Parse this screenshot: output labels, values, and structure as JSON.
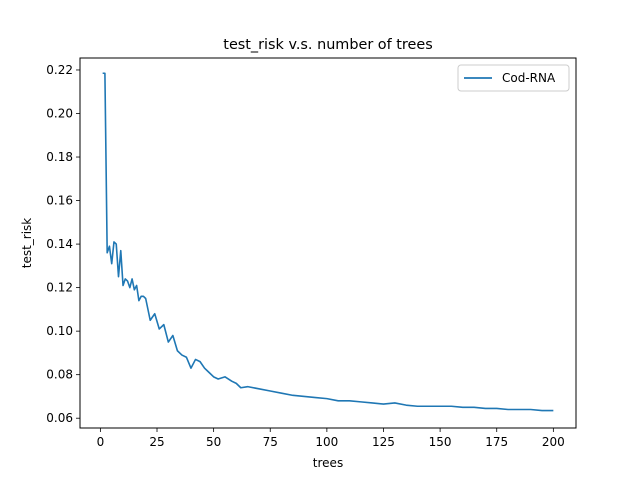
{
  "chart_data": {
    "type": "line",
    "title": "test_risk v.s. number of trees",
    "xlabel": "trees",
    "ylabel": "test_risk",
    "xlim": [
      -9,
      210
    ],
    "ylim": [
      0.0555,
      0.2255
    ],
    "xticks": [
      0,
      25,
      50,
      75,
      100,
      125,
      150,
      175,
      200
    ],
    "xtick_labels": [
      "0",
      "25",
      "50",
      "75",
      "100",
      "125",
      "150",
      "175",
      "200"
    ],
    "yticks": [
      0.06,
      0.08,
      0.1,
      0.12,
      0.14,
      0.16,
      0.18,
      0.2,
      0.22
    ],
    "ytick_labels": [
      "0.06",
      "0.08",
      "0.10",
      "0.12",
      "0.14",
      "0.16",
      "0.18",
      "0.20",
      "0.22"
    ],
    "grid": false,
    "legend_position": "top-right",
    "series": [
      {
        "name": "Cod-RNA",
        "color": "#1f77b4",
        "x": [
          1,
          2,
          3,
          4,
          5,
          6,
          7,
          8,
          9,
          10,
          11,
          12,
          13,
          14,
          15,
          16,
          17,
          18,
          19,
          20,
          22,
          24,
          26,
          28,
          30,
          32,
          34,
          36,
          38,
          40,
          42,
          44,
          46,
          48,
          50,
          52,
          55,
          58,
          60,
          62,
          65,
          70,
          75,
          80,
          85,
          90,
          95,
          100,
          105,
          110,
          115,
          120,
          125,
          130,
          135,
          140,
          145,
          150,
          155,
          160,
          165,
          170,
          175,
          180,
          185,
          190,
          195,
          200
        ],
        "values": [
          0.2185,
          0.2185,
          0.136,
          0.139,
          0.131,
          0.141,
          0.14,
          0.125,
          0.137,
          0.121,
          0.124,
          0.123,
          0.12,
          0.124,
          0.119,
          0.121,
          0.114,
          0.116,
          0.116,
          0.115,
          0.105,
          0.108,
          0.101,
          0.103,
          0.095,
          0.098,
          0.091,
          0.089,
          0.088,
          0.083,
          0.087,
          0.086,
          0.083,
          0.081,
          0.079,
          0.078,
          0.079,
          0.077,
          0.076,
          0.074,
          0.0745,
          0.0735,
          0.0725,
          0.0715,
          0.0705,
          0.07,
          0.0695,
          0.069,
          0.068,
          0.068,
          0.0675,
          0.067,
          0.0665,
          0.067,
          0.066,
          0.0655,
          0.0655,
          0.0655,
          0.0655,
          0.065,
          0.065,
          0.0645,
          0.0645,
          0.064,
          0.064,
          0.064,
          0.0635,
          0.0635
        ]
      }
    ]
  }
}
